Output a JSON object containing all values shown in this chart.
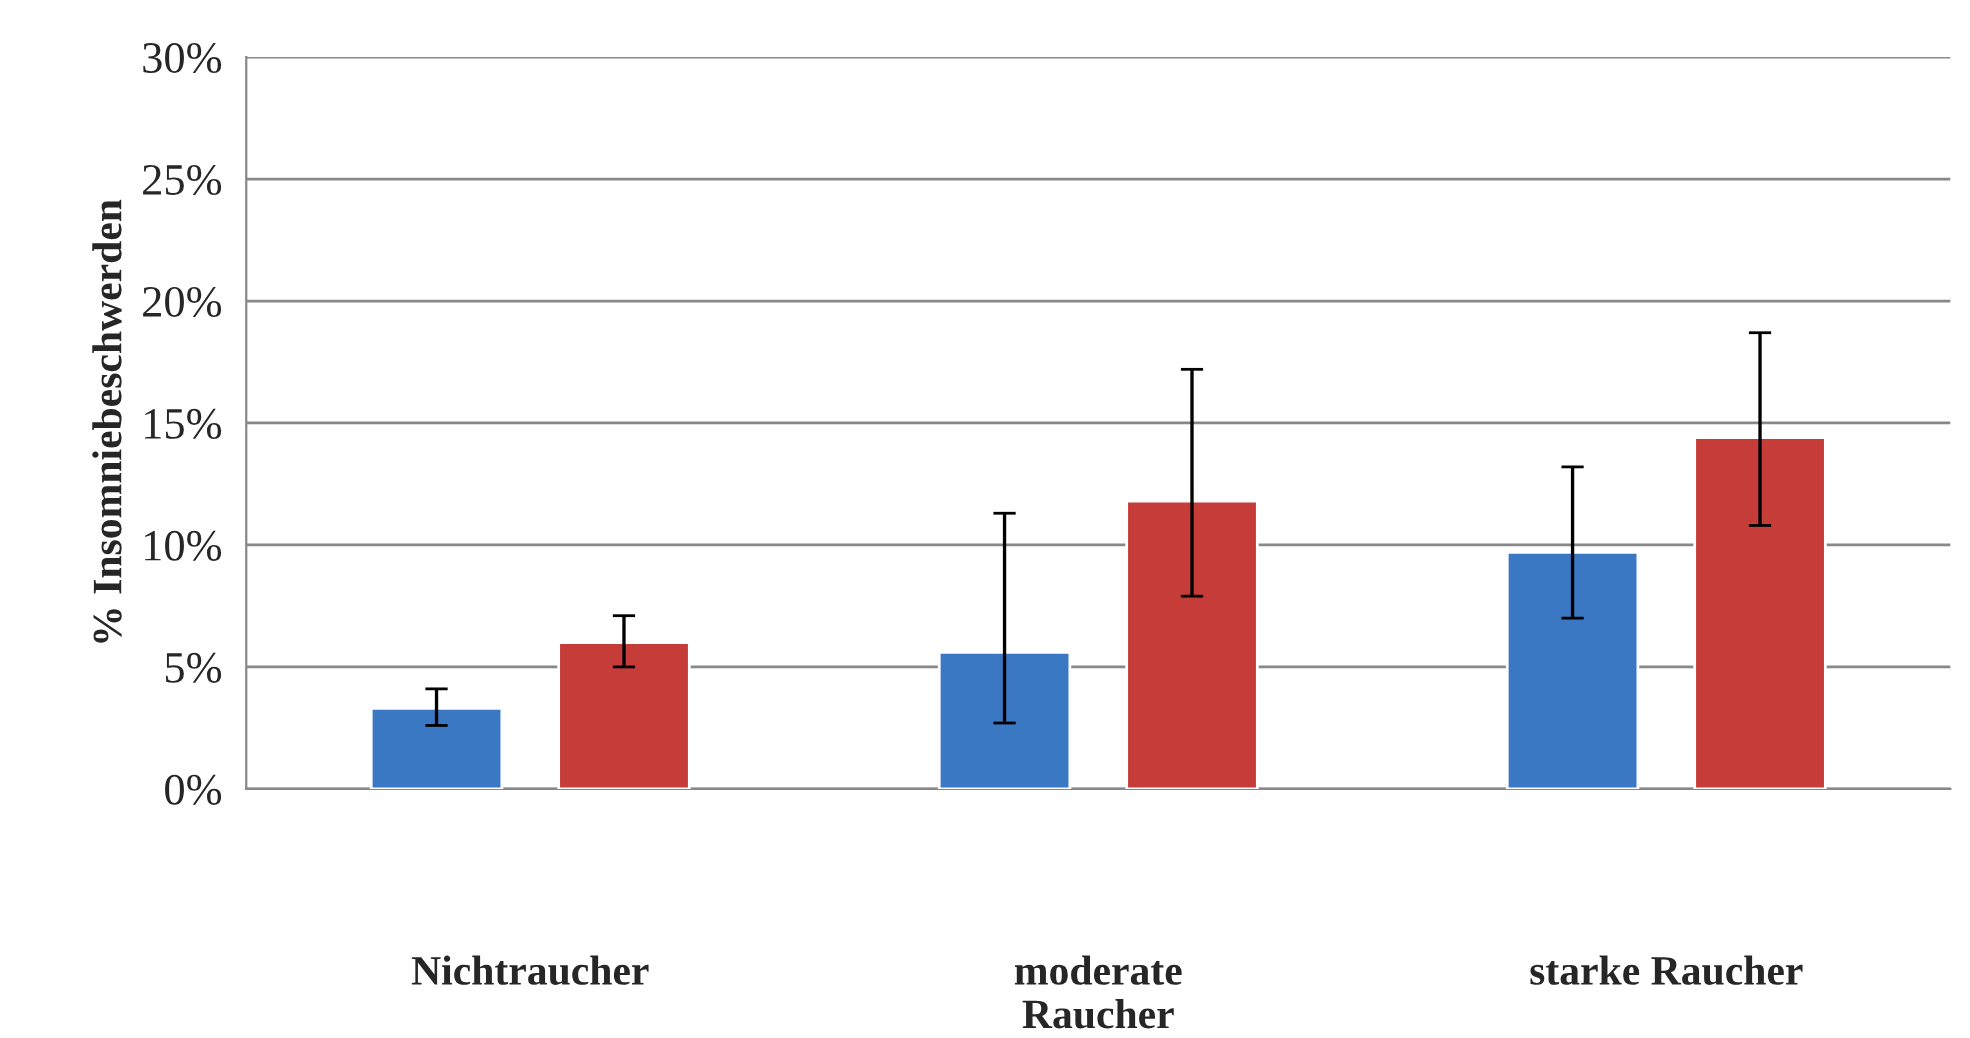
{
  "chart_data": {
    "type": "bar",
    "ylabel": "% Insomniebeschwerden",
    "categories": [
      "Nichtraucher",
      "moderate\nRaucher",
      "starke Raucher"
    ],
    "series": [
      {
        "color": "#3b78c4",
        "values": [
          3.3,
          5.6,
          9.7
        ],
        "errors": [
          [
            2.6,
            4.1
          ],
          [
            2.7,
            11.3
          ],
          [
            7.0,
            13.2
          ]
        ]
      },
      {
        "color": "#c63c38",
        "values": [
          6.0,
          11.8,
          14.4
        ],
        "errors": [
          [
            5.0,
            7.1
          ],
          [
            7.9,
            17.2
          ],
          [
            10.8,
            18.7
          ]
        ]
      }
    ],
    "ylim": [
      0,
      30
    ],
    "yticks": [
      {
        "value": 0,
        "label": "0%"
      },
      {
        "value": 5,
        "label": "5%"
      },
      {
        "value": 10,
        "label": "10%"
      },
      {
        "value": 15,
        "label": "15%"
      },
      {
        "value": 20,
        "label": "20%"
      },
      {
        "value": 25,
        "label": "25%"
      },
      {
        "value": 30,
        "label": "30%"
      }
    ],
    "grid": "y"
  }
}
